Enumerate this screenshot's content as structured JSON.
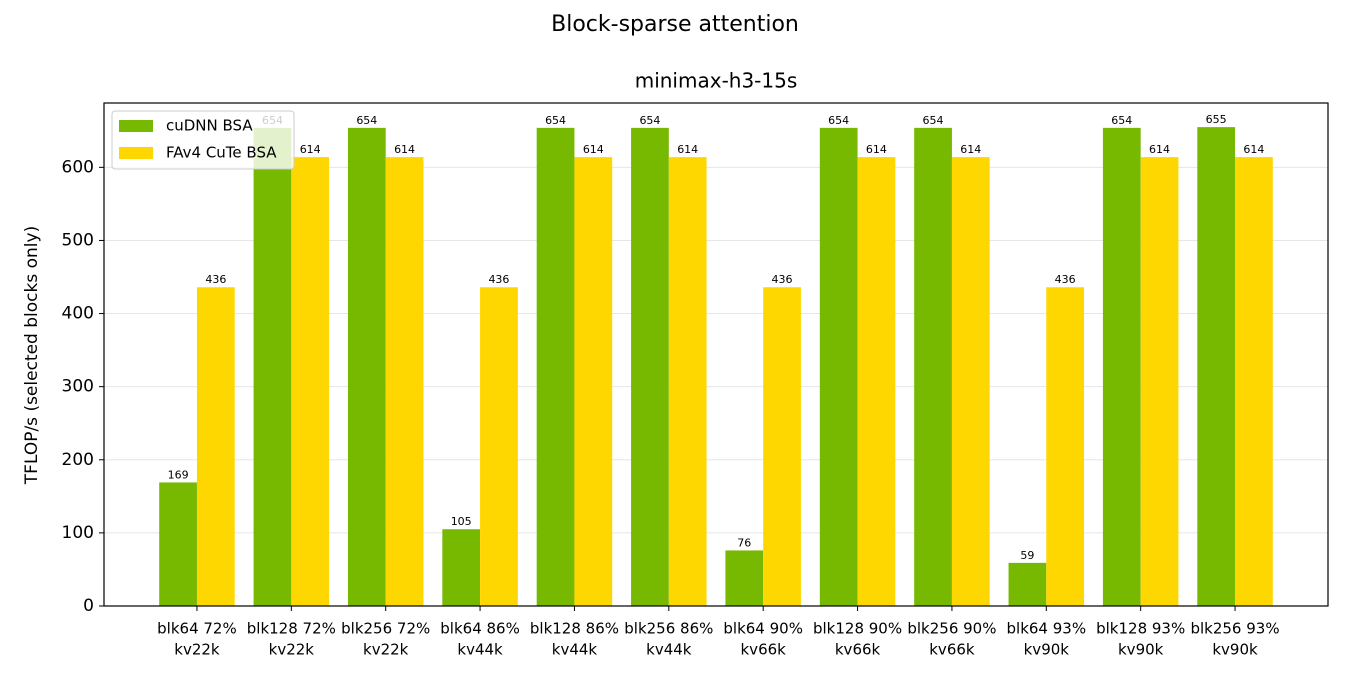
{
  "chart_data": {
    "type": "bar",
    "title": "Block-sparse attention",
    "subtitle": "minimax-h3-15s",
    "y_label": "TFLOP/s (selected blocks only)",
    "categories": [
      [
        "blk64 72%",
        "kv22k"
      ],
      [
        "blk128 72%",
        "kv22k"
      ],
      [
        "blk256 72%",
        "kv22k"
      ],
      [
        "blk64 86%",
        "kv44k"
      ],
      [
        "blk128 86%",
        "kv44k"
      ],
      [
        "blk256 86%",
        "kv44k"
      ],
      [
        "blk64 90%",
        "kv66k"
      ],
      [
        "blk128 90%",
        "kv66k"
      ],
      [
        "blk256 90%",
        "kv66k"
      ],
      [
        "blk64 93%",
        "kv90k"
      ],
      [
        "blk128 93%",
        "kv90k"
      ],
      [
        "blk256 93%",
        "kv90k"
      ]
    ],
    "series": [
      {
        "name": "cuDNN BSA",
        "color": "#76b900",
        "values": [
          169,
          654,
          654,
          105,
          654,
          654,
          76,
          654,
          654,
          59,
          654,
          655
        ]
      },
      {
        "name": "FAv4 CuTe BSA",
        "color": "#ffd700",
        "values": [
          436,
          614,
          614,
          436,
          614,
          614,
          436,
          614,
          614,
          436,
          614,
          614
        ]
      }
    ],
    "ylim": [
      0,
      688
    ],
    "yticks": [
      0,
      100,
      200,
      300,
      400,
      500,
      600
    ],
    "grid": true,
    "legend": "upper left"
  }
}
